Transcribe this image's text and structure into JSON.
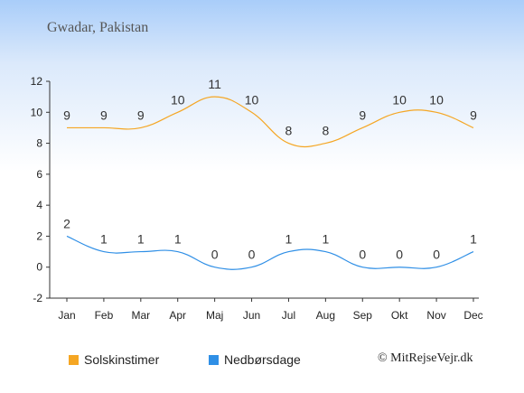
{
  "header": {
    "title": "Gwadar, Pakistan"
  },
  "credit": "© MitRejseVejr.dk",
  "chart_data": {
    "type": "line",
    "title": "Gwadar, Pakistan",
    "xlabel": "",
    "ylabel": "",
    "categories": [
      "Jan",
      "Feb",
      "Mar",
      "Apr",
      "Maj",
      "Jun",
      "Jul",
      "Aug",
      "Sep",
      "Okt",
      "Nov",
      "Dec"
    ],
    "yticks": [
      -2,
      0,
      2,
      4,
      6,
      8,
      10,
      12
    ],
    "ylim": [
      -2,
      12
    ],
    "grid": false,
    "legend_position": "bottom",
    "series": [
      {
        "name": "Solskinstimer",
        "color": "#f5a623",
        "values": [
          9,
          9,
          9,
          10,
          11,
          10,
          8,
          8,
          9,
          10,
          10,
          9
        ]
      },
      {
        "name": "Nedbørsdage",
        "color": "#2f8fe6",
        "values": [
          2,
          1,
          1,
          1,
          0,
          0,
          1,
          1,
          0,
          0,
          0,
          1
        ]
      }
    ]
  }
}
